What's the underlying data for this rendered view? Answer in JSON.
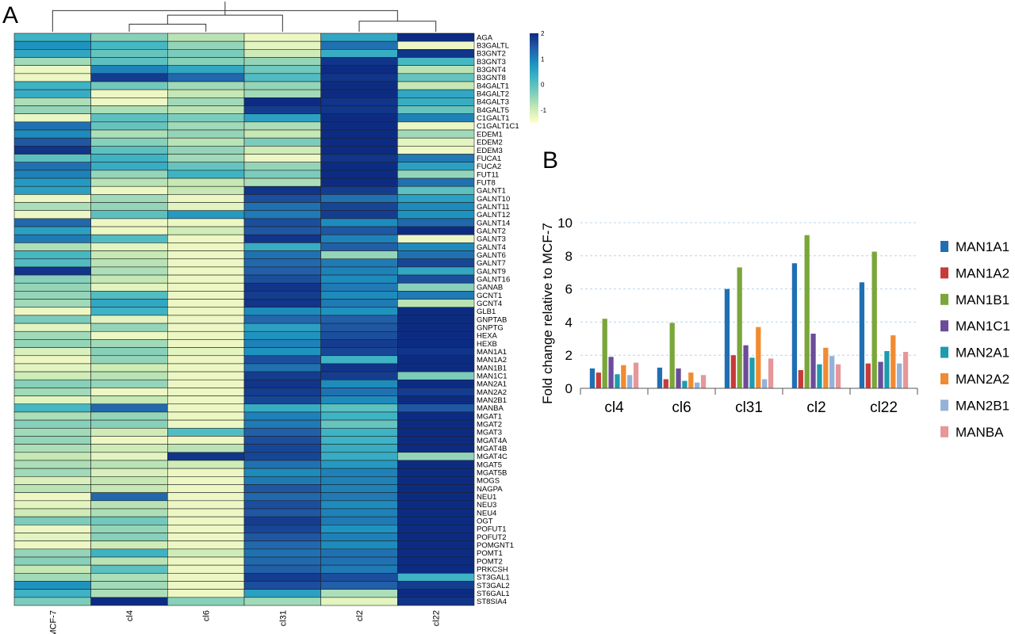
{
  "panels": {
    "a": "A",
    "b": "B"
  },
  "chart_data": [
    {
      "type": "heatmap",
      "color_scale": {
        "ticks": [
          "2",
          "1",
          "0",
          "-1"
        ],
        "colors": [
          "#ffffcc",
          "#c7e9b4",
          "#7fcdbb",
          "#41b6c4",
          "#1d91c0",
          "#225ea8",
          "#0c2c84"
        ],
        "min": -1.5,
        "max": 2
      },
      "samples": [
        "MCF-7",
        "cl4",
        "cl6",
        "cl31",
        "cl2",
        "cl22"
      ],
      "genes": [
        "AGA",
        "B3GALTL",
        "B3GNT2",
        "B3GNT3",
        "B3GNT4",
        "B3GNT8",
        "B4GALT1",
        "B4GALT2",
        "B4GALT3",
        "B4GALT5",
        "C1GALT1",
        "C1GALT1C1",
        "EDEM1",
        "EDEM2",
        "EDEM3",
        "FUCA1",
        "FUCA2",
        "FUT11",
        "FUT8",
        "GALNT1",
        "GALNT10",
        "GALNT11",
        "GALNT12",
        "GALNT14",
        "GALNT2",
        "GALNT3",
        "GALNT4",
        "GALNT6",
        "GALNT7",
        "GALNT9",
        "GALNT16",
        "GANAB",
        "GCNT1",
        "GCNT4",
        "GLB1",
        "GNPTAB",
        "GNPTG",
        "HEXA",
        "HEXB",
        "MAN1A1",
        "MAN1A2",
        "MAN1B1",
        "MAN1C1",
        "MAN2A1",
        "MAN2A2",
        "MAN2B1",
        "MANBA",
        "MGAT1",
        "MGAT2",
        "MGAT3",
        "MGAT4A",
        "MGAT4B",
        "MGAT4C",
        "MGAT5",
        "MGAT5B",
        "MOGS",
        "NAGPA",
        "NEU1",
        "NEU3",
        "NEU4",
        "OGT",
        "POFUT1",
        "POFUT2",
        "POMGNT1",
        "POMT1",
        "POMT2",
        "PRKCSH",
        "ST3GAL1",
        "ST3GAL2",
        "ST6GAL1",
        "ST8SIA4"
      ],
      "values": [
        [
          0.3,
          -0.4,
          -0.8,
          -1.3,
          0.5,
          2.0
        ],
        [
          0.8,
          0.2,
          -0.5,
          -1.2,
          1.2,
          -1.3
        ],
        [
          0.5,
          -0.1,
          -0.3,
          -1.0,
          0.4,
          1.9
        ],
        [
          -0.6,
          0.0,
          -0.4,
          -0.5,
          1.9,
          0.2
        ],
        [
          -1.3,
          1.0,
          0.5,
          -0.2,
          2.0,
          -0.8
        ],
        [
          -1.3,
          1.8,
          1.3,
          0.1,
          1.9,
          -0.1
        ],
        [
          0.3,
          -0.2,
          -0.6,
          -0.5,
          2.0,
          -0.9
        ],
        [
          0.4,
          -1.3,
          -0.9,
          -0.6,
          2.0,
          0.5
        ],
        [
          -0.7,
          -1.3,
          -0.6,
          2.0,
          1.9,
          0.4
        ],
        [
          -0.5,
          -0.7,
          -0.8,
          1.8,
          1.9,
          -0.1
        ],
        [
          -1.3,
          0.0,
          -0.3,
          0.6,
          2.0,
          1.0
        ],
        [
          1.2,
          -0.1,
          -0.6,
          -0.7,
          2.0,
          -1.3
        ],
        [
          0.9,
          -0.7,
          -0.5,
          -0.9,
          2.0,
          -0.6
        ],
        [
          1.5,
          -0.4,
          -0.8,
          -0.3,
          2.0,
          -1.2
        ],
        [
          1.9,
          0.0,
          -0.5,
          -1.0,
          2.0,
          -1.3
        ],
        [
          0.0,
          0.3,
          -0.6,
          -1.3,
          1.9,
          1.1
        ],
        [
          1.2,
          0.4,
          -0.1,
          -0.5,
          2.0,
          0.6
        ],
        [
          1.0,
          -0.5,
          0.3,
          -0.3,
          2.0,
          -0.5
        ],
        [
          0.7,
          -0.8,
          -0.9,
          -0.7,
          2.0,
          1.2
        ],
        [
          0.6,
          -1.3,
          -0.9,
          1.9,
          1.8,
          0.0
        ],
        [
          -1.3,
          -0.6,
          -1.3,
          1.6,
          1.2,
          0.6
        ],
        [
          -0.7,
          -0.5,
          -1.2,
          1.2,
          1.7,
          0.9
        ],
        [
          -1.3,
          0.0,
          0.7,
          1.1,
          1.8,
          0.8
        ],
        [
          1.3,
          -1.3,
          -1.3,
          1.6,
          0.9,
          1.3
        ],
        [
          0.6,
          -1.3,
          -1.0,
          1.5,
          1.5,
          2.0
        ],
        [
          1.1,
          0.1,
          -1.3,
          1.9,
          1.0,
          -1.3
        ],
        [
          -0.7,
          -1.2,
          -1.3,
          0.4,
          1.4,
          0.9
        ],
        [
          0.2,
          -0.9,
          -1.3,
          1.2,
          -0.5,
          1.2
        ],
        [
          0.1,
          -0.8,
          -1.3,
          1.3,
          1.1,
          1.7
        ],
        [
          1.9,
          -0.7,
          -1.3,
          1.4,
          1.0,
          0.5
        ],
        [
          -0.4,
          -0.9,
          -1.3,
          1.6,
          0.9,
          1.6
        ],
        [
          -0.5,
          -1.2,
          -1.3,
          1.9,
          1.1,
          -0.4
        ],
        [
          -0.5,
          0.1,
          -1.3,
          1.8,
          0.9,
          1.1
        ],
        [
          -0.6,
          0.5,
          -1.3,
          1.9,
          1.1,
          -0.8
        ],
        [
          -1.3,
          0.3,
          -1.3,
          0.9,
          0.8,
          2.0
        ],
        [
          -0.3,
          -1.2,
          -1.3,
          1.3,
          1.4,
          2.0
        ],
        [
          -1.2,
          -0.5,
          -1.3,
          0.6,
          1.5,
          2.0
        ],
        [
          -0.6,
          -1.3,
          -1.3,
          0.8,
          1.6,
          2.0
        ],
        [
          -0.5,
          -0.6,
          -1.3,
          1.0,
          1.8,
          2.0
        ],
        [
          -1.1,
          -0.4,
          -1.2,
          0.8,
          1.7,
          1.9
        ],
        [
          -1.3,
          -0.5,
          -1.3,
          1.6,
          0.3,
          2.0
        ],
        [
          -1.2,
          -1.0,
          -1.3,
          1.2,
          1.9,
          2.0
        ],
        [
          -1.0,
          -0.8,
          -1.3,
          1.8,
          1.8,
          -0.3
        ],
        [
          -0.4,
          -0.5,
          -1.3,
          1.9,
          0.9,
          2.0
        ],
        [
          -0.6,
          -1.3,
          -1.3,
          1.8,
          1.2,
          1.8
        ],
        [
          -1.2,
          -0.9,
          -1.3,
          1.7,
          0.9,
          2.0
        ],
        [
          0.2,
          1.3,
          -1.3,
          0.4,
          0.0,
          1.5
        ],
        [
          -0.7,
          -0.5,
          -1.3,
          1.0,
          0.3,
          2.0
        ],
        [
          -0.4,
          -0.4,
          -1.3,
          1.1,
          -0.1,
          2.0
        ],
        [
          -0.6,
          -1.0,
          0.1,
          1.4,
          0.3,
          2.0
        ],
        [
          -0.5,
          -1.3,
          -1.3,
          1.6,
          0.3,
          2.0
        ],
        [
          -0.7,
          -1.0,
          -0.8,
          1.7,
          0.4,
          2.0
        ],
        [
          -0.9,
          -1.2,
          1.9,
          1.7,
          0.4,
          -0.5
        ],
        [
          -0.7,
          -0.8,
          -1.0,
          1.2,
          0.7,
          2.0
        ],
        [
          -0.6,
          -1.1,
          -1.3,
          0.9,
          1.0,
          2.0
        ],
        [
          -1.1,
          -0.9,
          -1.3,
          1.1,
          1.0,
          2.0
        ],
        [
          -0.8,
          -0.9,
          -1.3,
          1.5,
          1.0,
          2.0
        ],
        [
          -1.3,
          1.3,
          -1.3,
          1.3,
          1.1,
          2.0
        ],
        [
          -1.2,
          -0.8,
          -1.3,
          1.6,
          0.9,
          2.0
        ],
        [
          -1.0,
          -0.7,
          -1.3,
          1.5,
          1.0,
          2.0
        ],
        [
          -0.3,
          -0.2,
          -1.3,
          1.8,
          1.1,
          2.0
        ],
        [
          -1.3,
          -0.5,
          -1.3,
          1.7,
          0.8,
          2.0
        ],
        [
          -1.2,
          -0.4,
          -1.3,
          1.5,
          1.0,
          2.0
        ],
        [
          -1.3,
          -1.0,
          -1.3,
          1.3,
          0.9,
          2.0
        ],
        [
          -0.5,
          0.3,
          -1.0,
          1.2,
          1.2,
          2.0
        ],
        [
          -0.4,
          -0.8,
          -1.3,
          1.3,
          1.2,
          2.0
        ],
        [
          -0.9,
          0.0,
          -1.3,
          1.4,
          1.1,
          2.0
        ],
        [
          -0.6,
          -0.7,
          -1.3,
          1.8,
          1.6,
          0.3
        ],
        [
          0.8,
          -0.6,
          -1.3,
          1.6,
          1.4,
          1.8
        ],
        [
          0.3,
          -0.7,
          -1.3,
          0.6,
          -0.7,
          2.0
        ],
        [
          -0.3,
          2.0,
          -0.4,
          -0.6,
          -1.2,
          1.9
        ]
      ],
      "dendrogram": [
        [
          1,
          2,
          0.25
        ],
        [
          4,
          5,
          0.35
        ],
        [
          3,
          6,
          0.55
        ],
        [
          0,
          7,
          0.7
        ],
        [
          8,
          9,
          1.0
        ]
      ]
    },
    {
      "type": "bar",
      "categories": [
        "cl4",
        "cl6",
        "cl31",
        "cl2",
        "cl22"
      ],
      "ylabel": "Fold change relative to MCF-7",
      "ylim": [
        0,
        10
      ],
      "yticks": [
        "0",
        "2",
        "4",
        "6",
        "8",
        "10"
      ],
      "grid": true,
      "legend_position": "right",
      "series": [
        {
          "name": "MAN1A1",
          "color": "#1f6fb2",
          "values": [
            1.2,
            1.25,
            6.0,
            7.55,
            6.4
          ]
        },
        {
          "name": "MAN1A2",
          "color": "#c83a3a",
          "values": [
            0.95,
            0.55,
            2.0,
            1.1,
            1.5
          ]
        },
        {
          "name": "MAN1B1",
          "color": "#7aa63a",
          "values": [
            4.2,
            3.95,
            7.3,
            9.25,
            8.25
          ]
        },
        {
          "name": "MAN1C1",
          "color": "#6b4c9a",
          "values": [
            1.9,
            1.2,
            2.6,
            3.3,
            1.6
          ]
        },
        {
          "name": "MAN2A1",
          "color": "#1c9cae",
          "values": [
            0.85,
            0.45,
            1.85,
            1.45,
            2.25
          ]
        },
        {
          "name": "MAN2A2",
          "color": "#f08b32",
          "values": [
            1.4,
            0.95,
            3.7,
            2.45,
            3.2
          ]
        },
        {
          "name": "MAN2B1",
          "color": "#94b1d9",
          "values": [
            0.8,
            0.35,
            0.55,
            1.95,
            1.5
          ]
        },
        {
          "name": "MANBA",
          "color": "#e6979a",
          "values": [
            1.55,
            0.8,
            1.8,
            1.45,
            2.2
          ]
        }
      ]
    }
  ]
}
